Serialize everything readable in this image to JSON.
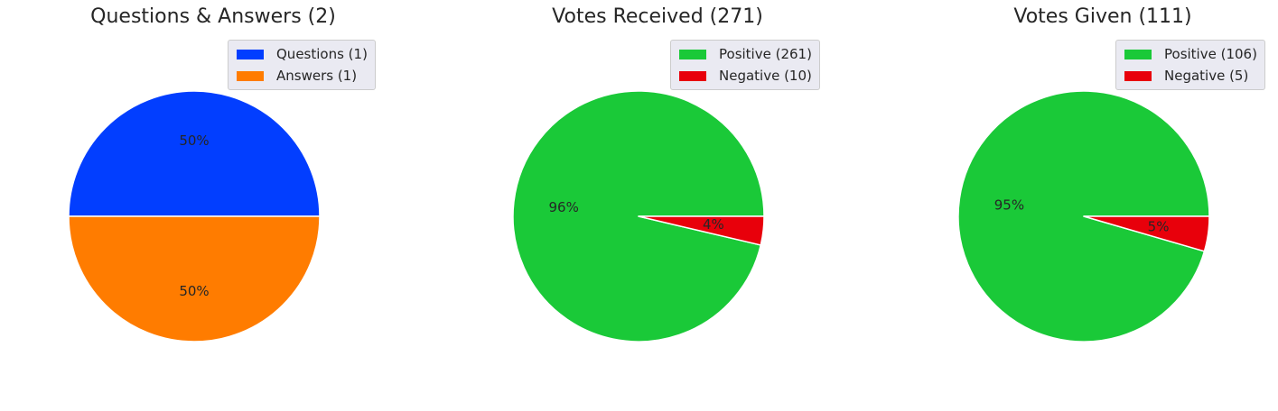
{
  "chart_data": [
    {
      "type": "pie",
      "title": "Questions & Answers (2)",
      "labels": [
        "Questions (1)",
        "Answers (1)"
      ],
      "values": [
        1,
        1
      ],
      "percent_labels": [
        "50%",
        "50%"
      ],
      "colors": [
        "#023eff",
        "#ff7c00"
      ],
      "legend": "top-right"
    },
    {
      "type": "pie",
      "title": "Votes Received (271)",
      "labels": [
        "Positive (261)",
        "Negative (10)"
      ],
      "values": [
        261,
        10
      ],
      "percent_labels": [
        "96%",
        "4%"
      ],
      "colors": [
        "#1ac938",
        "#e8000b"
      ],
      "legend": "top-right"
    },
    {
      "type": "pie",
      "title": "Votes Given (111)",
      "labels": [
        "Positive (106)",
        "Negative (5)"
      ],
      "values": [
        106,
        5
      ],
      "percent_labels": [
        "95%",
        "5%"
      ],
      "colors": [
        "#1ac938",
        "#e8000b"
      ],
      "legend": "top-right"
    }
  ]
}
